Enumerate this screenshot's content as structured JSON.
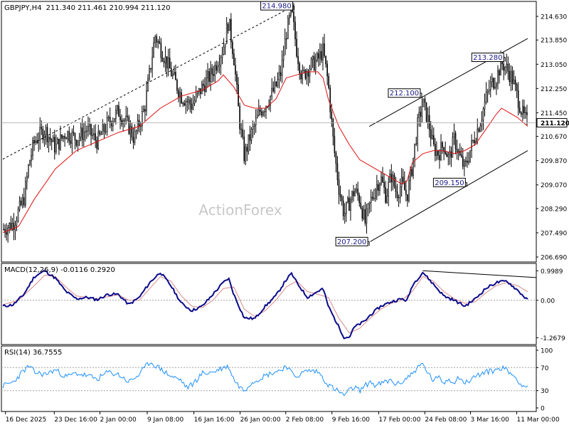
{
  "chart_data": {
    "type": "candlestick",
    "symbol": "GBPJPY,H4",
    "ohlc_header": "211.340 211.461 210.994 211.120",
    "watermark": "ActionForex",
    "current_price": "211.120",
    "price_axis": {
      "ylim": [
        206.55,
        215.1
      ],
      "ticks": [
        {
          "value": 214.63,
          "label": "214.630"
        },
        {
          "value": 213.85,
          "label": "213.850"
        },
        {
          "value": 213.05,
          "label": "213.050"
        },
        {
          "value": 212.25,
          "label": "212.250"
        },
        {
          "value": 211.45,
          "label": "211.450"
        },
        {
          "value": 210.67,
          "label": "210.670"
        },
        {
          "value": 209.87,
          "label": "209.870"
        },
        {
          "value": 209.07,
          "label": "209.070"
        },
        {
          "value": 208.29,
          "label": "208.290"
        },
        {
          "value": 207.49,
          "label": "207.490"
        },
        {
          "value": 206.69,
          "label": "206.690"
        }
      ]
    },
    "time_axis": {
      "x_domain": [
        0,
        100
      ],
      "labels": [
        {
          "pos": 0.5,
          "text": "16 Dec 2025"
        },
        {
          "pos": 9.8,
          "text": "23 Dec 16:00"
        },
        {
          "pos": 18.5,
          "text": "2 Jan 00:00"
        },
        {
          "pos": 27.5,
          "text": "9 Jan 08:00"
        },
        {
          "pos": 36.4,
          "text": "16 Jan 16:00"
        },
        {
          "pos": 45.2,
          "text": "26 Jan 00:00"
        },
        {
          "pos": 53.9,
          "text": "2 Feb 08:00"
        },
        {
          "pos": 62.7,
          "text": "9 Feb 16:00"
        },
        {
          "pos": 71.6,
          "text": "17 Feb 00:00"
        },
        {
          "pos": 80.4,
          "text": "24 Feb 08:00"
        },
        {
          "pos": 89.1,
          "text": "3 Mar 16:00"
        },
        {
          "pos": 97.9,
          "text": "11 Mar 00:00"
        }
      ]
    },
    "price_path": [
      [
        0,
        207.6
      ],
      [
        2,
        207.8
      ],
      [
        4,
        208.6
      ],
      [
        5,
        209.8
      ],
      [
        6,
        210.5
      ],
      [
        8,
        210.9
      ],
      [
        10,
        210.3
      ],
      [
        12,
        210.8
      ],
      [
        14,
        210.6
      ],
      [
        16,
        210.9
      ],
      [
        18,
        210.5
      ],
      [
        20,
        211.1
      ],
      [
        22,
        211.5
      ],
      [
        24,
        211.0
      ],
      [
        25,
        210.6
      ],
      [
        27,
        211.6
      ],
      [
        28,
        212.8
      ],
      [
        29,
        214.0
      ],
      [
        30,
        213.6
      ],
      [
        32,
        212.8
      ],
      [
        34,
        212.0
      ],
      [
        36,
        211.7
      ],
      [
        38,
        212.3
      ],
      [
        40,
        212.8
      ],
      [
        42,
        213.6
      ],
      [
        43,
        214.5
      ],
      [
        44,
        213.3
      ],
      [
        45,
        211.3
      ],
      [
        46,
        210.0
      ],
      [
        47,
        210.6
      ],
      [
        49,
        211.5
      ],
      [
        50,
        211.7
      ],
      [
        52,
        212.3
      ],
      [
        53,
        212.8
      ],
      [
        54,
        214.1
      ],
      [
        55,
        214.8
      ],
      [
        56,
        213.5
      ],
      [
        57,
        212.6
      ],
      [
        58,
        212.9
      ],
      [
        60,
        213.2
      ],
      [
        61,
        213.5
      ],
      [
        62,
        212.4
      ],
      [
        63,
        210.4
      ],
      [
        64,
        209.0
      ],
      [
        65,
        208.1
      ],
      [
        66,
        208.5
      ],
      [
        67,
        208.9
      ],
      [
        68,
        208.6
      ],
      [
        69,
        207.8
      ],
      [
        70,
        208.5
      ],
      [
        71,
        209.0
      ],
      [
        72,
        209.3
      ],
      [
        73,
        208.7
      ],
      [
        74,
        209.4
      ],
      [
        75,
        208.8
      ],
      [
        76,
        209.1
      ],
      [
        77,
        208.7
      ],
      [
        78,
        209.7
      ],
      [
        79,
        211.0
      ],
      [
        80,
        211.8
      ],
      [
        81,
        211.2
      ],
      [
        82,
        210.3
      ],
      [
        83,
        210.1
      ],
      [
        84,
        210.4
      ],
      [
        85,
        209.9
      ],
      [
        86,
        210.6
      ],
      [
        87,
        210.0
      ],
      [
        88,
        209.6
      ],
      [
        89,
        210.2
      ],
      [
        90,
        210.7
      ],
      [
        91,
        211.2
      ],
      [
        92,
        211.9
      ],
      [
        93,
        212.4
      ],
      [
        94,
        212.6
      ],
      [
        95,
        213.1
      ],
      [
        96,
        212.9
      ],
      [
        97,
        212.6
      ],
      [
        98,
        212.0
      ],
      [
        99,
        211.4
      ],
      [
        100,
        211.1
      ]
    ],
    "ma_path": [
      [
        0,
        207.5
      ],
      [
        3,
        207.7
      ],
      [
        6,
        208.6
      ],
      [
        10,
        209.6
      ],
      [
        14,
        210.2
      ],
      [
        18,
        210.5
      ],
      [
        22,
        210.8
      ],
      [
        26,
        211.0
      ],
      [
        30,
        211.6
      ],
      [
        34,
        212.0
      ],
      [
        38,
        212.2
      ],
      [
        41,
        212.5
      ],
      [
        42,
        212.7
      ],
      [
        44,
        212.3
      ],
      [
        46,
        211.7
      ],
      [
        48,
        211.6
      ],
      [
        50,
        211.6
      ],
      [
        52,
        211.9
      ],
      [
        54,
        212.6
      ],
      [
        56,
        212.7
      ],
      [
        58,
        212.8
      ],
      [
        60,
        212.8
      ],
      [
        61,
        212.6
      ],
      [
        62,
        211.9
      ],
      [
        64,
        211.0
      ],
      [
        66,
        210.4
      ],
      [
        68,
        209.9
      ],
      [
        70,
        209.7
      ],
      [
        72,
        209.5
      ],
      [
        74,
        209.3
      ],
      [
        76,
        209.1
      ],
      [
        77,
        209.2
      ],
      [
        78,
        209.8
      ],
      [
        80,
        210.1
      ],
      [
        82,
        210.2
      ],
      [
        84,
        210.2
      ],
      [
        86,
        210.1
      ],
      [
        88,
        210.2
      ],
      [
        90,
        210.4
      ],
      [
        92,
        210.9
      ],
      [
        94,
        211.4
      ],
      [
        95,
        211.6
      ],
      [
        96,
        211.5
      ],
      [
        98,
        211.3
      ],
      [
        100,
        211.0
      ]
    ],
    "trendlines": [
      {
        "style": "dashed",
        "from": [
          0,
          209.92
        ],
        "to": [
          55.5,
          214.98
        ]
      },
      {
        "style": "solid",
        "from": [
          69.8,
          211.0
        ],
        "to": [
          100,
          213.9
        ]
      },
      {
        "style": "solid",
        "from": [
          70,
          207.2
        ],
        "to": [
          100,
          210.2
        ]
      }
    ],
    "annotations": [
      {
        "text": "214.980",
        "x": 55.5,
        "y": 214.98,
        "side": "left"
      },
      {
        "text": "213.280",
        "x": 95.7,
        "y": 213.28,
        "side": "left"
      },
      {
        "text": "212.100",
        "x": 79.8,
        "y": 212.1,
        "side": "left"
      },
      {
        "text": "209.150",
        "x": 88.4,
        "y": 209.15,
        "side": "left"
      },
      {
        "text": "207.200",
        "x": 69.8,
        "y": 207.2,
        "side": "left"
      }
    ],
    "macd": {
      "label": "MACD(12,26,9) -0.0116 0.2920",
      "ylim": [
        -1.45,
        1.2
      ],
      "ticks": [
        {
          "value": 0.9989,
          "label": "0.9989"
        },
        {
          "value": 0.0,
          "label": "0.00"
        },
        {
          "value": -1.2679,
          "label": "-1.2679"
        }
      ],
      "main_path": [
        [
          0,
          -0.2
        ],
        [
          2,
          -0.15
        ],
        [
          4,
          0.2
        ],
        [
          6,
          0.8
        ],
        [
          8,
          1.0
        ],
        [
          10,
          0.75
        ],
        [
          12,
          0.3
        ],
        [
          14,
          0.05
        ],
        [
          16,
          0.1
        ],
        [
          18,
          0.02
        ],
        [
          20,
          0.2
        ],
        [
          22,
          0.2
        ],
        [
          24,
          -0.15
        ],
        [
          26,
          0.1
        ],
        [
          28,
          0.6
        ],
        [
          30,
          0.95
        ],
        [
          32,
          0.5
        ],
        [
          34,
          -0.1
        ],
        [
          36,
          -0.35
        ],
        [
          38,
          -0.2
        ],
        [
          40,
          0.2
        ],
        [
          42,
          0.6
        ],
        [
          43,
          0.75
        ],
        [
          44,
          0.2
        ],
        [
          46,
          -0.6
        ],
        [
          48,
          -0.62
        ],
        [
          50,
          -0.2
        ],
        [
          52,
          0.15
        ],
        [
          54,
          0.7
        ],
        [
          55,
          0.9
        ],
        [
          56,
          0.6
        ],
        [
          58,
          0.1
        ],
        [
          60,
          0.3
        ],
        [
          61,
          0.4
        ],
        [
          62,
          -0.2
        ],
        [
          64,
          -0.9
        ],
        [
          65,
          -1.25
        ],
        [
          66,
          -1.25
        ],
        [
          67,
          -0.9
        ],
        [
          69,
          -0.7
        ],
        [
          70,
          -0.5
        ],
        [
          72,
          -0.2
        ],
        [
          74,
          -0.05
        ],
        [
          76,
          0.05
        ],
        [
          77,
          -0.02
        ],
        [
          78,
          0.5
        ],
        [
          80,
          0.95
        ],
        [
          82,
          0.55
        ],
        [
          84,
          0.15
        ],
        [
          86,
          0.0
        ],
        [
          88,
          -0.2
        ],
        [
          90,
          0.05
        ],
        [
          92,
          0.4
        ],
        [
          94,
          0.6
        ],
        [
          96,
          0.65
        ],
        [
          98,
          0.35
        ],
        [
          100,
          0.0
        ]
      ],
      "signal_path": [
        [
          0,
          -0.15
        ],
        [
          3,
          0.0
        ],
        [
          6,
          0.5
        ],
        [
          8,
          0.85
        ],
        [
          10,
          0.8
        ],
        [
          12,
          0.45
        ],
        [
          14,
          0.15
        ],
        [
          16,
          0.1
        ],
        [
          18,
          0.05
        ],
        [
          20,
          0.12
        ],
        [
          22,
          0.18
        ],
        [
          24,
          0.0
        ],
        [
          26,
          0.0
        ],
        [
          28,
          0.4
        ],
        [
          30,
          0.8
        ],
        [
          32,
          0.65
        ],
        [
          34,
          0.15
        ],
        [
          36,
          -0.2
        ],
        [
          38,
          -0.25
        ],
        [
          40,
          0.0
        ],
        [
          42,
          0.4
        ],
        [
          44,
          0.45
        ],
        [
          46,
          -0.3
        ],
        [
          48,
          -0.55
        ],
        [
          50,
          -0.35
        ],
        [
          52,
          0.0
        ],
        [
          54,
          0.45
        ],
        [
          56,
          0.65
        ],
        [
          58,
          0.3
        ],
        [
          60,
          0.2
        ],
        [
          62,
          0.1
        ],
        [
          64,
          -0.6
        ],
        [
          66,
          -1.1
        ],
        [
          68,
          -0.95
        ],
        [
          70,
          -0.6
        ],
        [
          72,
          -0.3
        ],
        [
          74,
          -0.1
        ],
        [
          76,
          0.0
        ],
        [
          78,
          0.3
        ],
        [
          80,
          0.8
        ],
        [
          82,
          0.65
        ],
        [
          84,
          0.3
        ],
        [
          86,
          0.05
        ],
        [
          88,
          -0.1
        ],
        [
          90,
          -0.05
        ],
        [
          92,
          0.25
        ],
        [
          94,
          0.5
        ],
        [
          96,
          0.6
        ],
        [
          98,
          0.5
        ],
        [
          100,
          0.29
        ]
      ],
      "divergence_line": {
        "from": [
          80,
          1.0
        ],
        "to": [
          100,
          0.77
        ]
      }
    },
    "rsi": {
      "label": "RSI(14) 36.7555",
      "ylim": [
        0,
        100
      ],
      "ticks": [
        {
          "value": 100,
          "label": "100"
        },
        {
          "value": 70,
          "label": "70"
        },
        {
          "value": 30,
          "label": "30"
        },
        {
          "value": 0,
          "label": "0"
        }
      ],
      "levels": [
        70,
        30
      ],
      "path": [
        [
          0,
          38
        ],
        [
          2,
          45
        ],
        [
          4,
          65
        ],
        [
          5,
          72
        ],
        [
          6,
          62
        ],
        [
          8,
          58
        ],
        [
          10,
          66
        ],
        [
          12,
          54
        ],
        [
          14,
          60
        ],
        [
          16,
          56
        ],
        [
          18,
          50
        ],
        [
          20,
          62
        ],
        [
          22,
          58
        ],
        [
          24,
          45
        ],
        [
          26,
          58
        ],
        [
          28,
          80
        ],
        [
          30,
          68
        ],
        [
          32,
          55
        ],
        [
          34,
          48
        ],
        [
          35,
          35
        ],
        [
          36,
          40
        ],
        [
          38,
          60
        ],
        [
          40,
          62
        ],
        [
          42,
          70
        ],
        [
          43,
          72
        ],
        [
          44,
          50
        ],
        [
          45,
          38
        ],
        [
          46,
          30
        ],
        [
          47,
          42
        ],
        [
          49,
          52
        ],
        [
          51,
          60
        ],
        [
          53,
          66
        ],
        [
          54,
          74
        ],
        [
          55,
          60
        ],
        [
          56,
          55
        ],
        [
          58,
          65
        ],
        [
          60,
          63
        ],
        [
          61,
          52
        ],
        [
          62,
          40
        ],
        [
          63,
          34
        ],
        [
          64,
          28
        ],
        [
          65,
          22
        ],
        [
          66,
          30
        ],
        [
          67,
          36
        ],
        [
          68,
          30
        ],
        [
          69,
          38
        ],
        [
          70,
          46
        ],
        [
          71,
          38
        ],
        [
          72,
          42
        ],
        [
          74,
          48
        ],
        [
          75,
          40
        ],
        [
          76,
          45
        ],
        [
          78,
          60
        ],
        [
          79,
          70
        ],
        [
          80,
          76
        ],
        [
          81,
          60
        ],
        [
          82,
          48
        ],
        [
          83,
          52
        ],
        [
          84,
          44
        ],
        [
          85,
          50
        ],
        [
          86,
          45
        ],
        [
          87,
          55
        ],
        [
          88,
          42
        ],
        [
          90,
          55
        ],
        [
          92,
          62
        ],
        [
          94,
          66
        ],
        [
          95,
          70
        ],
        [
          96,
          66
        ],
        [
          98,
          50
        ],
        [
          99,
          38
        ],
        [
          100,
          37
        ]
      ]
    }
  }
}
